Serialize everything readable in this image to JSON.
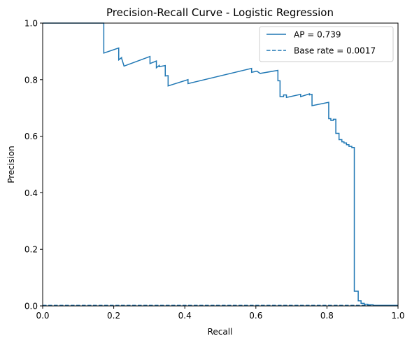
{
  "chart_data": {
    "type": "line",
    "title": "Precision-Recall Curve - Logistic Regression",
    "xlabel": "Recall",
    "ylabel": "Precision",
    "xlim": [
      0.0,
      1.0
    ],
    "ylim": [
      0.0,
      1.0
    ],
    "xticks": [
      "0.0",
      "0.2",
      "0.4",
      "0.6",
      "0.8",
      "1.0"
    ],
    "yticks": [
      "0.0",
      "0.2",
      "0.4",
      "0.6",
      "0.8",
      "1.0"
    ],
    "xtick_values": [
      0.0,
      0.2,
      0.4,
      0.6,
      0.8,
      1.0
    ],
    "ytick_values": [
      0.0,
      0.2,
      0.4,
      0.6,
      0.8,
      1.0
    ],
    "grid": false,
    "legend_position": "top-right",
    "color": "#1f77b4",
    "series": [
      {
        "name": "AP = 0.739",
        "style": "solid",
        "x": [
          0.0,
          0.172,
          0.172,
          0.214,
          0.214,
          0.222,
          0.222,
          0.229,
          0.229,
          0.302,
          0.302,
          0.32,
          0.32,
          0.328,
          0.328,
          0.345,
          0.345,
          0.353,
          0.353,
          0.353,
          0.409,
          0.409,
          0.588,
          0.588,
          0.603,
          0.603,
          0.612,
          0.612,
          0.662,
          0.662,
          0.668,
          0.668,
          0.678,
          0.678,
          0.686,
          0.686,
          0.726,
          0.726,
          0.751,
          0.751,
          0.758,
          0.758,
          0.758,
          0.805,
          0.805,
          0.811,
          0.811,
          0.818,
          0.818,
          0.825,
          0.825,
          0.834,
          0.834,
          0.842,
          0.842,
          0.848,
          0.848,
          0.855,
          0.855,
          0.862,
          0.862,
          0.87,
          0.87,
          0.877,
          0.877,
          0.888,
          0.888,
          0.896,
          0.896,
          0.905,
          0.905,
          0.915,
          0.915,
          0.93,
          0.93,
          0.96,
          1.0
        ],
        "y": [
          1.0,
          1.0,
          0.894,
          0.912,
          0.87,
          0.878,
          0.876,
          0.848,
          0.848,
          0.882,
          0.857,
          0.866,
          0.842,
          0.85,
          0.846,
          0.85,
          0.813,
          0.814,
          0.8,
          0.778,
          0.8,
          0.786,
          0.84,
          0.826,
          0.83,
          0.83,
          0.822,
          0.822,
          0.833,
          0.796,
          0.796,
          0.74,
          0.74,
          0.746,
          0.746,
          0.737,
          0.748,
          0.74,
          0.75,
          0.746,
          0.748,
          0.73,
          0.708,
          0.72,
          0.662,
          0.662,
          0.656,
          0.656,
          0.66,
          0.66,
          0.61,
          0.61,
          0.588,
          0.588,
          0.58,
          0.58,
          0.576,
          0.576,
          0.57,
          0.57,
          0.564,
          0.564,
          0.56,
          0.56,
          0.052,
          0.052,
          0.018,
          0.018,
          0.009,
          0.009,
          0.006,
          0.006,
          0.004,
          0.004,
          0.002,
          0.002,
          0.0017
        ]
      },
      {
        "name": "Base rate = 0.0017",
        "style": "dashed",
        "x": [
          0.0,
          1.0
        ],
        "y": [
          0.0017,
          0.0017
        ]
      }
    ]
  }
}
